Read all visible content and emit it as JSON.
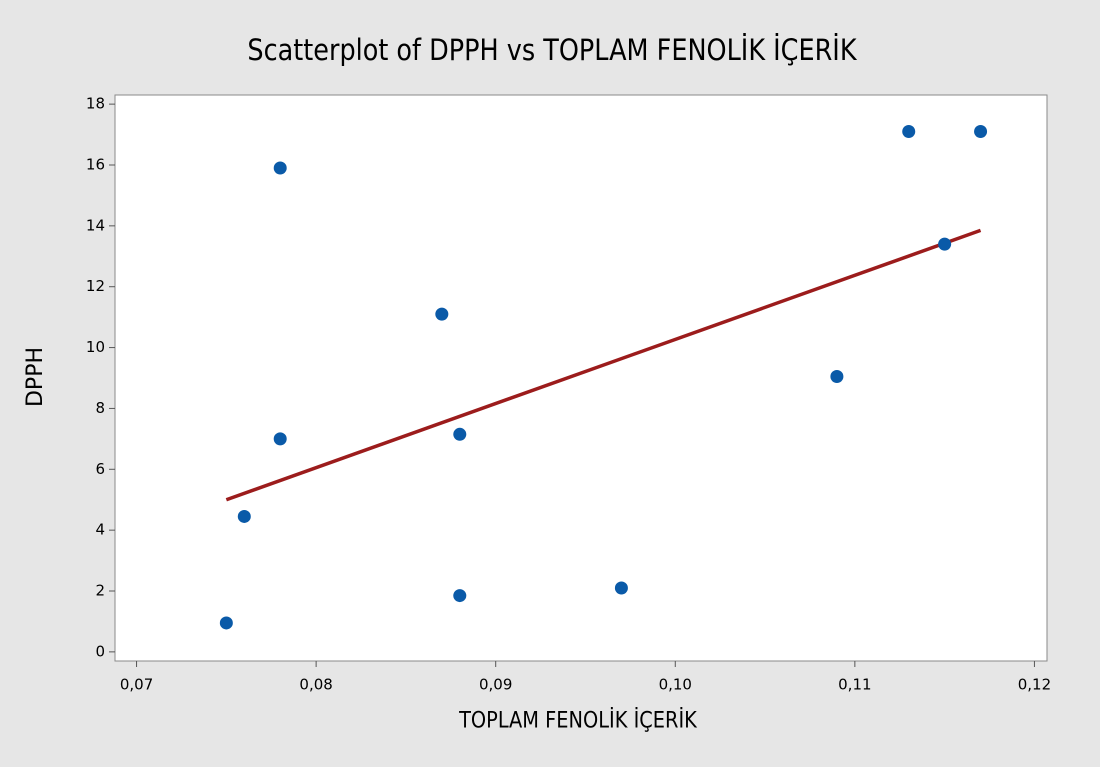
{
  "chart_data": {
    "type": "scatter",
    "title": "Scatterplot of DPPH vs TOPLAM FENOLİK İÇERİK",
    "x_label": "TOPLAM FENOLİK İÇERİK",
    "y_label": "DPPH",
    "series": [
      {
        "color": "#0a5aa8",
        "x": [
          0.075,
          0.076,
          0.078,
          0.078,
          0.087,
          0.088,
          0.088,
          0.097,
          0.109,
          0.113,
          0.115,
          0.117
        ],
        "values": [
          0.95,
          4.45,
          15.9,
          7.0,
          11.1,
          7.15,
          1.85,
          2.1,
          9.05,
          17.1,
          13.4,
          17.1
        ]
      }
    ],
    "fit_line": {
      "color": "#9c1c1c",
      "x": [
        0.075,
        0.117
      ],
      "values": [
        5.0,
        13.85
      ]
    },
    "xlim": [
      0.0688,
      0.1207
    ],
    "ylim": [
      -0.3,
      18.3
    ],
    "xticks": [
      {
        "value": 0.07,
        "label": "0,07"
      },
      {
        "value": 0.08,
        "label": "0,08"
      },
      {
        "value": 0.09,
        "label": "0,09"
      },
      {
        "value": 0.1,
        "label": "0,10"
      },
      {
        "value": 0.11,
        "label": "0,11"
      },
      {
        "value": 0.12,
        "label": "0,12"
      }
    ],
    "yticks": [
      0,
      2,
      4,
      6,
      8,
      10,
      12,
      14,
      16,
      18
    ]
  }
}
